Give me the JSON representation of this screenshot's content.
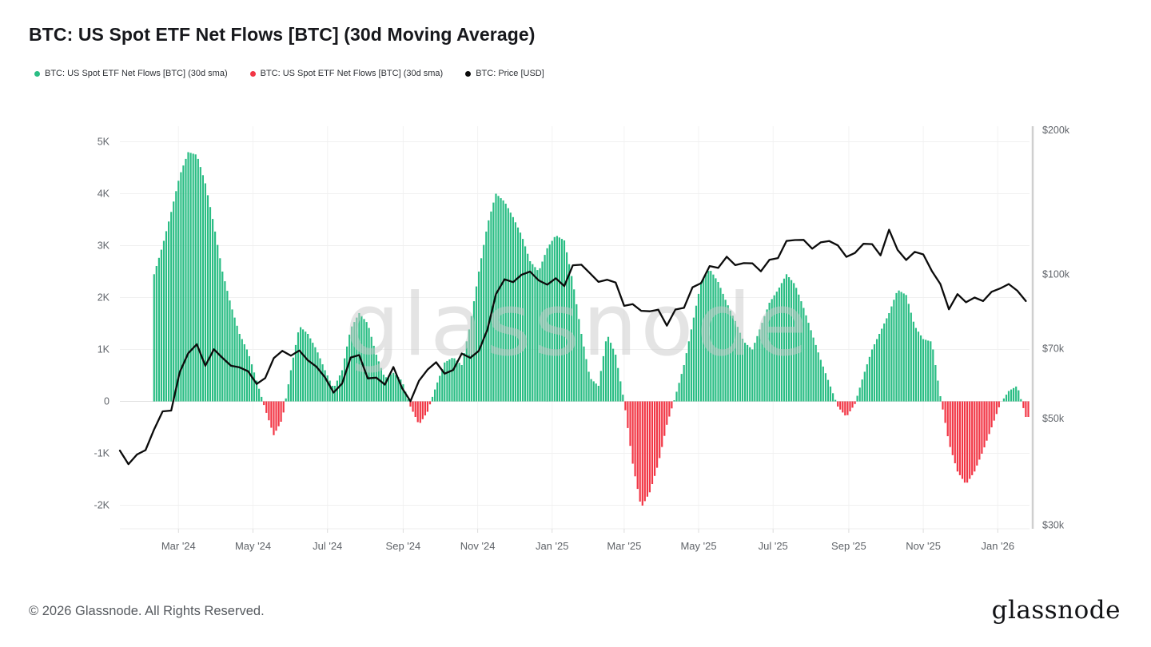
{
  "header": {
    "title": "BTC: US Spot ETF Net Flows [BTC] (30d Moving Average)"
  },
  "legend": [
    {
      "label": "BTC: US Spot ETF Net Flows [BTC] (30d sma)",
      "color": "#2abd84",
      "marker": "dot-icon"
    },
    {
      "label": "BTC: US Spot ETF Net Flows [BTC] (30d sma)",
      "color": "#f23645",
      "marker": "dot-icon"
    },
    {
      "label": "BTC: Price [USD]",
      "color": "#0b0b0b",
      "marker": "dot-icon"
    }
  ],
  "watermark": "glassnode",
  "footer": {
    "copyright": "© 2026 Glassnode. All Rights Reserved.",
    "logo": "glassnode"
  },
  "chart_data": {
    "type": "combo",
    "title": "BTC: US Spot ETF Net Flows [BTC] (30d Moving Average)",
    "grid": true,
    "legend_position": "top-left",
    "x_axis": {
      "start_date": "2024-01-13",
      "end_date": "2026-01-28",
      "tick_labels": [
        "Mar '24",
        "May '24",
        "Jul '24",
        "Sep '24",
        "Nov '24",
        "Jan '25",
        "Mar '25",
        "May '25",
        "Jul '25",
        "Sep '25",
        "Nov '25",
        "Jan '26"
      ],
      "tick_days": [
        48,
        109,
        170,
        232,
        293,
        354,
        413,
        474,
        535,
        597,
        658,
        719
      ],
      "total_days": 745
    },
    "y_left": {
      "title": "Net flows, 30d SMA (BTC)",
      "unit": "K BTC",
      "tick_values": [
        5,
        4,
        3,
        2,
        1,
        0,
        -1,
        -2
      ],
      "tick_labels": [
        "5K",
        "4K",
        "3K",
        "2K",
        "1K",
        "0",
        "-1K",
        "-2K"
      ],
      "range": [
        -2.55,
        5.3
      ]
    },
    "y_right": {
      "title": "BTC price (USD)",
      "scale": "log",
      "tick_values": [
        200,
        100,
        70,
        50,
        30
      ],
      "tick_labels": [
        "$200k",
        "$100k",
        "$70k",
        "$50k",
        "$30k"
      ],
      "range_k": [
        29,
        200
      ]
    },
    "series": [
      {
        "name": "BTC: US Spot ETF Net Flows [BTC] (30d sma)",
        "type": "bar",
        "axis": "left",
        "unit": "K BTC",
        "color_positive": "#2abd84",
        "color_negative": "#f23645",
        "start_day": 28,
        "step_days": 7,
        "values": [
          2.45,
          3.0,
          3.65,
          4.35,
          4.8,
          4.75,
          4.2,
          3.4,
          2.5,
          1.85,
          1.3,
          0.95,
          0.4,
          -0.15,
          -0.65,
          -0.35,
          0.6,
          1.45,
          1.3,
          1.0,
          0.6,
          0.25,
          0.6,
          1.4,
          1.7,
          1.5,
          0.9,
          0.45,
          0.55,
          0.4,
          -0.1,
          -0.45,
          -0.2,
          0.3,
          0.75,
          0.85,
          0.7,
          1.5,
          2.5,
          3.4,
          4.0,
          3.85,
          3.55,
          3.2,
          2.7,
          2.5,
          2.95,
          3.2,
          3.1,
          2.3,
          1.3,
          0.45,
          0.3,
          1.3,
          0.9,
          0.0,
          -1.2,
          -2.05,
          -1.75,
          -1.2,
          -0.45,
          0.1,
          0.7,
          1.5,
          2.3,
          2.55,
          2.3,
          1.9,
          1.55,
          1.15,
          1.0,
          1.45,
          1.9,
          2.15,
          2.45,
          2.25,
          1.8,
          1.3,
          0.8,
          0.35,
          -0.1,
          -0.3,
          -0.05,
          0.5,
          1.0,
          1.35,
          1.7,
          2.15,
          2.05,
          1.45,
          1.2,
          1.15,
          0.1,
          -0.8,
          -1.35,
          -1.6,
          -1.35,
          -0.95,
          -0.5,
          -0.05,
          0.2,
          0.3,
          -0.3
        ]
      },
      {
        "name": "BTC: Price [USD]",
        "type": "line",
        "axis": "right",
        "unit": "$k",
        "color": "#0b0b0b",
        "start_day": 0,
        "step_days": 7,
        "values": [
          42.9,
          40.2,
          42.1,
          43.0,
          47.5,
          51.8,
          52.0,
          62.5,
          68.5,
          71.5,
          64.5,
          69.8,
          67.0,
          64.5,
          64.0,
          62.8,
          59.1,
          60.8,
          66.9,
          69.3,
          67.7,
          69.4,
          66.2,
          64.2,
          61.0,
          56.7,
          59.2,
          67.1,
          67.9,
          60.7,
          60.9,
          58.9,
          64.1,
          58.0,
          54.4,
          60.0,
          63.3,
          65.6,
          62.1,
          63.2,
          68.4,
          67.0,
          69.3,
          76.7,
          91.0,
          97.7,
          96.4,
          99.9,
          101.4,
          97.2,
          95.2,
          98.2,
          94.6,
          104.5,
          104.8,
          100.6,
          96.5,
          97.5,
          96.2,
          86.0,
          86.7,
          84.0,
          83.8,
          84.4,
          78.2,
          84.5,
          85.2,
          94.0,
          95.9,
          104.1,
          103.2,
          108.9,
          104.6,
          105.6,
          105.5,
          101.5,
          107.3,
          108.2,
          117.5,
          118.0,
          118.1,
          113.2,
          116.7,
          117.4,
          115.0,
          108.8,
          110.9,
          115.9,
          115.7,
          109.6,
          124.0,
          112.5,
          107.2,
          111.5,
          110.1,
          101.7,
          95.5,
          84.6,
          91.0,
          87.5,
          89.5,
          88.0,
          92.0,
          93.5,
          95.5,
          92.5,
          88.0
        ]
      }
    ]
  }
}
